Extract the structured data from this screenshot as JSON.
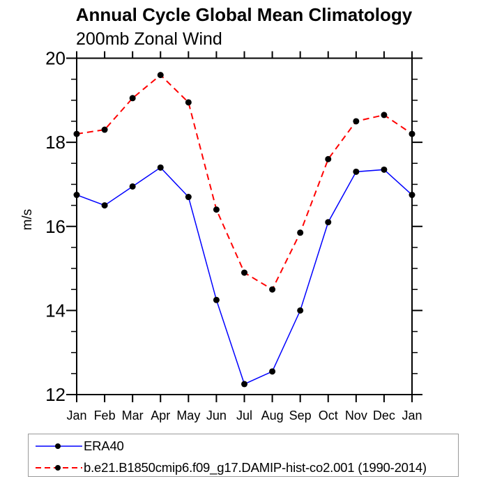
{
  "chart_data": {
    "type": "line",
    "title": "Annual Cycle Global Mean Climatology",
    "subtitle": "200mb Zonal Wind",
    "ylabel": "m/s",
    "categories": [
      "Jan",
      "Feb",
      "Mar",
      "Apr",
      "May",
      "Jun",
      "Jul",
      "Aug",
      "Sep",
      "Oct",
      "Nov",
      "Dec",
      "Jan"
    ],
    "series": [
      {
        "name": "ERA40",
        "line_color": "#0000ff",
        "line_style": "solid",
        "marker": "filled-circle",
        "marker_color": "#000000",
        "values": [
          16.75,
          16.5,
          16.95,
          17.4,
          16.7,
          14.25,
          12.25,
          12.55,
          14.0,
          16.1,
          17.3,
          17.35,
          16.75
        ]
      },
      {
        "name": "b.e21.B1850cmip6.f09_g17.DAMIP-hist-co2.001 (1990-2014)",
        "line_color": "#ff0000",
        "line_style": "dashed",
        "marker": "filled-circle",
        "marker_color": "#000000",
        "values": [
          18.2,
          18.3,
          19.05,
          19.6,
          18.95,
          16.4,
          14.9,
          14.5,
          15.85,
          17.6,
          18.5,
          18.65,
          18.2
        ]
      }
    ],
    "ylim": [
      12,
      20
    ],
    "y_major_ticks": [
      12,
      14,
      16,
      18,
      20
    ],
    "y_minor_step": 0.5,
    "grid": "off",
    "axis_color": "#000000",
    "legend_position": "bottom-left"
  }
}
